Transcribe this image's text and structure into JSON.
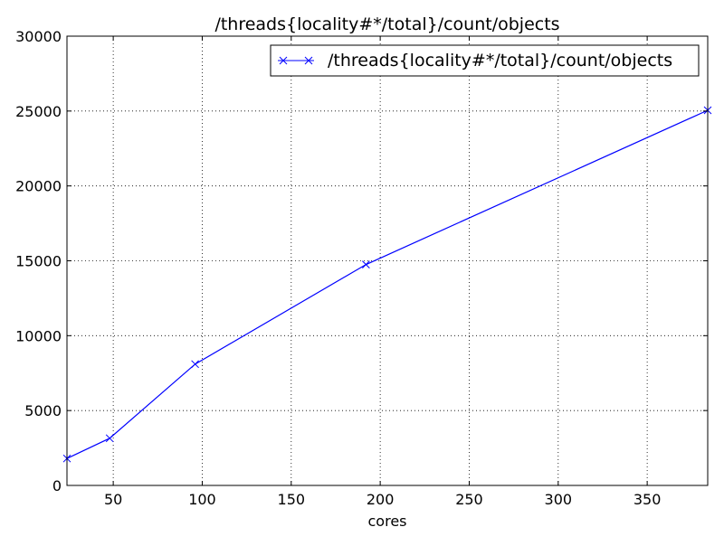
{
  "chart_data": {
    "type": "line",
    "title": "/threads{locality#*/total}/count/objects",
    "xlabel": "cores",
    "ylabel": "",
    "xlim": [
      24,
      384
    ],
    "ylim": [
      0,
      30000
    ],
    "xticks": [
      50,
      100,
      150,
      200,
      250,
      300,
      350
    ],
    "yticks": [
      0,
      5000,
      10000,
      15000,
      20000,
      25000,
      30000
    ],
    "grid": true,
    "legend_position": "top-right",
    "series": [
      {
        "name": "/threads{locality#*/total}/count/objects",
        "color": "#0000ff",
        "marker": "x",
        "x": [
          24,
          48,
          96,
          192,
          384
        ],
        "y": [
          1800,
          3150,
          8100,
          14750,
          25050
        ]
      }
    ]
  }
}
